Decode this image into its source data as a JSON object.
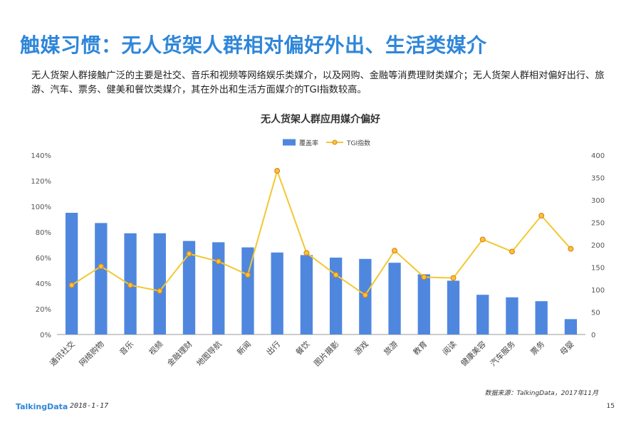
{
  "page": {
    "title": "触媒习惯：无人货架人群相对偏好外出、生活类媒介",
    "intro": "无人货架人群接触广泛的主要是社交、音乐和视频等网络娱乐类媒介，以及网购、金融等消费理财类媒介；无人货架人群相对偏好出行、旅游、汽车、票务、健美和餐饮类媒介，其在外出和生活方面媒介的TGI指数较高。"
  },
  "footer": {
    "logo": "TalkingData",
    "date": "2018-1-17",
    "source": "数据来源：TalkingData，2017年11月",
    "page_number": "15"
  },
  "colors": {
    "bar": "#4f87df",
    "line": "#f2c832",
    "title": "#2f86d9"
  },
  "chart_data": {
    "type": "bar",
    "title": "无人货架人群应用媒介偏好",
    "legend_position": "top-center",
    "categories": [
      "通讯社交",
      "网络购物",
      "音乐",
      "视频",
      "金融理财",
      "地图导航",
      "新闻",
      "出行",
      "餐饮",
      "图片摄影",
      "游戏",
      "旅游",
      "教育",
      "阅读",
      "健康美容",
      "汽车服务",
      "票务",
      "母婴"
    ],
    "series": [
      {
        "name": "覆盖率",
        "type": "bar",
        "axis": "left",
        "values": [
          95,
          87,
          79,
          79,
          73,
          72,
          68,
          64,
          62,
          60,
          59,
          56,
          47,
          42,
          31,
          29,
          26,
          12
        ]
      },
      {
        "name": "TGI指数",
        "type": "line",
        "axis": "right",
        "values": [
          110,
          152,
          110,
          97,
          180,
          163,
          133,
          365,
          182,
          133,
          88,
          187,
          128,
          126,
          212,
          185,
          265,
          191
        ]
      }
    ],
    "y_left": {
      "ticks": [
        "0%",
        "20%",
        "40%",
        "60%",
        "80%",
        "100%",
        "120%",
        "140%"
      ],
      "range": [
        0,
        140
      ]
    },
    "y_right": {
      "ticks": [
        "0",
        "50",
        "100",
        "150",
        "200",
        "250",
        "300",
        "350",
        "400"
      ],
      "range": [
        0,
        400
      ]
    },
    "grid": false
  }
}
